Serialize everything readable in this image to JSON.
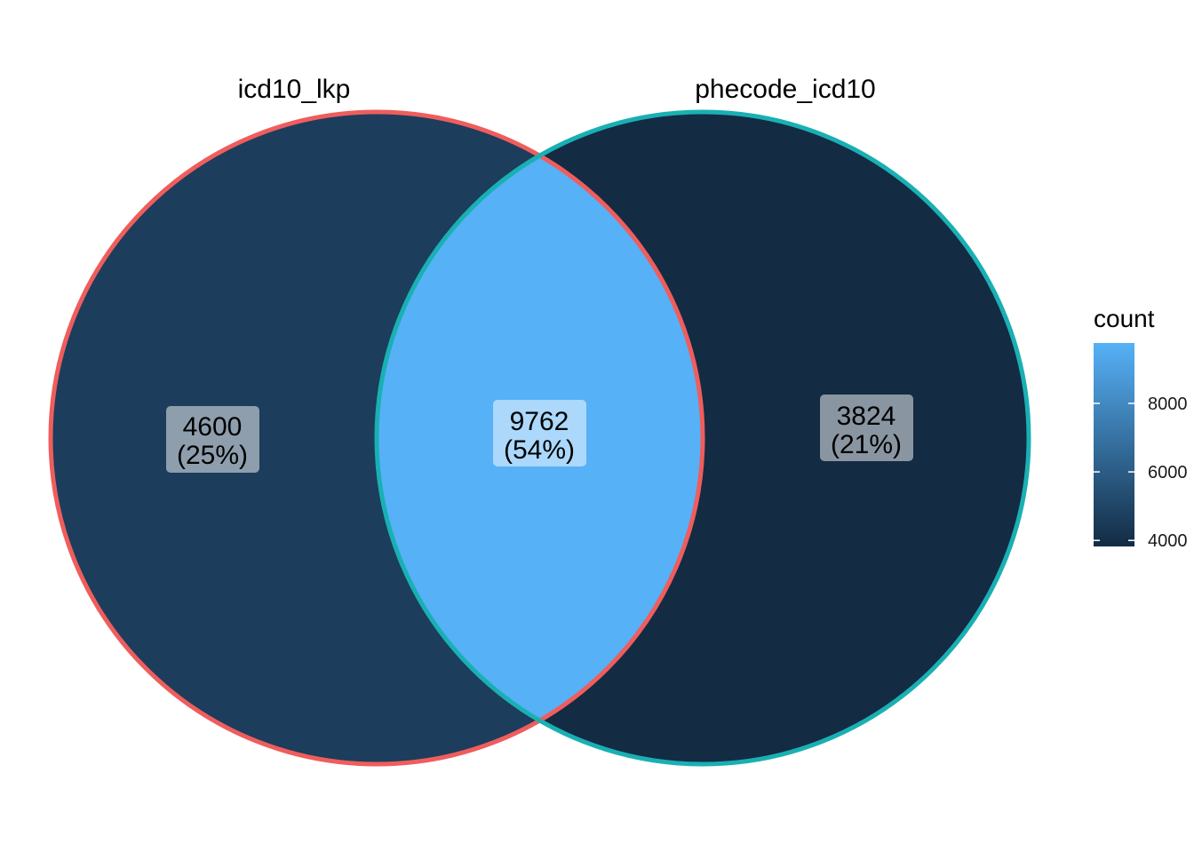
{
  "chart_data": {
    "type": "venn",
    "sets": [
      {
        "name": "icd10_lkp",
        "border_color": "#ef5d5d"
      },
      {
        "name": "phecode_icd10",
        "border_color": "#19b0b3"
      }
    ],
    "regions": [
      {
        "sets": [
          "icd10_lkp"
        ],
        "count": 4600,
        "count_label": "4600",
        "percent_label": "(25%)"
      },
      {
        "sets": [
          "icd10_lkp",
          "phecode_icd10"
        ],
        "count": 9762,
        "count_label": "9762",
        "percent_label": "(54%)"
      },
      {
        "sets": [
          "phecode_icd10"
        ],
        "count": 3824,
        "count_label": "3824",
        "percent_label": "(21%)"
      }
    ],
    "legend": {
      "title": "count",
      "type": "colorbar",
      "placement": "right",
      "range": [
        3824,
        9762
      ],
      "ticks": [
        {
          "value": 4000,
          "label": "4000"
        },
        {
          "value": 6000,
          "label": "6000"
        },
        {
          "value": 8000,
          "label": "8000"
        }
      ],
      "color_low": "#132b43",
      "color_high": "#56b1f7"
    }
  }
}
